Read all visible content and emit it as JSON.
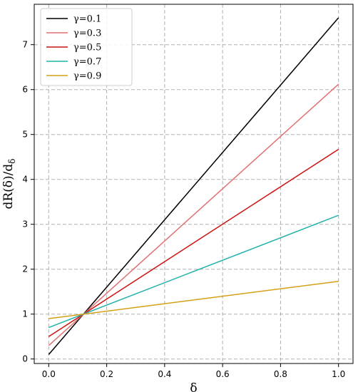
{
  "chart_data": {
    "type": "line",
    "xlabel": "δ",
    "ylabel": "dR(δ)/d",
    "ylabel_subscript": "δ",
    "xlim": [
      -0.05,
      1.05
    ],
    "ylim": [
      -0.1,
      7.9
    ],
    "xticks": [
      "0.0",
      "0.2",
      "0.4",
      "0.6",
      "0.8",
      "1.0"
    ],
    "xtick_values": [
      0.0,
      0.2,
      0.4,
      0.6,
      0.8,
      1.0
    ],
    "yticks": [
      "0",
      "1",
      "2",
      "3",
      "4",
      "5",
      "6",
      "7"
    ],
    "ytick_values": [
      0,
      1,
      2,
      3,
      4,
      5,
      6,
      7
    ],
    "grid": true,
    "legend_position": "top-left",
    "x": [
      0.0,
      1.0
    ],
    "series": [
      {
        "name": "γ=0.1",
        "color": "#000000",
        "values": [
          0.1,
          7.6
        ]
      },
      {
        "name": "γ=0.3",
        "color": "#e07070",
        "values": [
          0.3,
          6.12
        ]
      },
      {
        "name": "γ=0.5",
        "color": "#cc1010",
        "values": [
          0.5,
          4.67
        ]
      },
      {
        "name": "γ=0.7",
        "color": "#20b2aa",
        "values": [
          0.7,
          3.2
        ]
      },
      {
        "name": "γ=0.9",
        "color": "#d4a017",
        "values": [
          0.9,
          1.73
        ]
      }
    ]
  }
}
